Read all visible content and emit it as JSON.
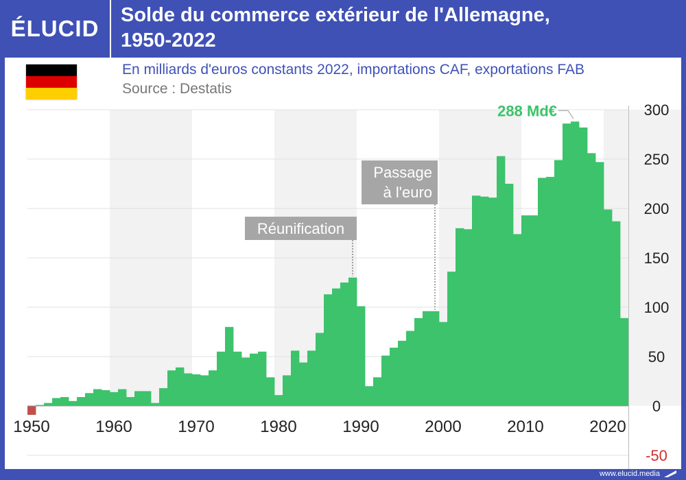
{
  "header": {
    "logo": "ÉLUCID",
    "title_line1": "Solde du commerce extérieur de l'Allemagne,",
    "title_line2": "1950-2022"
  },
  "subtitle": "En milliards d'euros constants 2022, importations CAF, exportations FAB",
  "source": "Source : Destatis",
  "footer": "www.elucid.media",
  "flag_colors": [
    "#000000",
    "#dd0000",
    "#ffce00"
  ],
  "colors": {
    "positive": "#3cc36b",
    "negative": "#c0504d",
    "peak_label": "#3cc36b",
    "negative_tick": "#d32f2f",
    "annotation_box": "#a6a6a6"
  },
  "chart_data": {
    "type": "bar",
    "x": [
      1950,
      1951,
      1952,
      1953,
      1954,
      1955,
      1956,
      1957,
      1958,
      1959,
      1960,
      1961,
      1962,
      1963,
      1964,
      1965,
      1966,
      1967,
      1968,
      1969,
      1970,
      1971,
      1972,
      1973,
      1974,
      1975,
      1976,
      1977,
      1978,
      1979,
      1980,
      1981,
      1982,
      1983,
      1984,
      1985,
      1986,
      1987,
      1988,
      1989,
      1990,
      1991,
      1992,
      1993,
      1994,
      1995,
      1996,
      1997,
      1998,
      1999,
      2000,
      2001,
      2002,
      2003,
      2004,
      2005,
      2006,
      2007,
      2008,
      2009,
      2010,
      2011,
      2012,
      2013,
      2014,
      2015,
      2016,
      2017,
      2018,
      2019,
      2020,
      2021,
      2022
    ],
    "values": [
      -9,
      1,
      3,
      8,
      9,
      5,
      9,
      13,
      17,
      16,
      14,
      17,
      9,
      15,
      15,
      3,
      18,
      36,
      39,
      33,
      32,
      31,
      36,
      55,
      80,
      55,
      49,
      53,
      55,
      29,
      11,
      31,
      56,
      44,
      56,
      74,
      113,
      119,
      125,
      130,
      101,
      20,
      29,
      51,
      59,
      66,
      76,
      89,
      96,
      96,
      85,
      136,
      180,
      179,
      213,
      212,
      211,
      253,
      225,
      174,
      193,
      193,
      231,
      232,
      249,
      286,
      288,
      282,
      256,
      247,
      199,
      187,
      89
    ],
    "y_ticks": [
      "300",
      "250",
      "200",
      "150",
      "100",
      "50",
      "0",
      "-50"
    ],
    "y_tick_values": [
      300,
      250,
      200,
      150,
      100,
      50,
      0,
      -50
    ],
    "x_ticks": [
      "1950",
      "1960",
      "1970",
      "1980",
      "1990",
      "2000",
      "2010",
      "2020"
    ],
    "x_tick_values": [
      1950,
      1960,
      1970,
      1980,
      1990,
      2000,
      2010,
      2020
    ],
    "ylim": [
      -50,
      300
    ],
    "xlim": [
      1950,
      2022
    ],
    "y_axis_side": "right",
    "annotations": [
      {
        "text": "288 Md€",
        "year": 2016,
        "value": 288
      },
      {
        "text": "Réunification",
        "year": 1989,
        "value": 130
      },
      {
        "text": "Passage",
        "text2": "à l'euro",
        "year": 1999,
        "value": 96
      }
    ]
  }
}
